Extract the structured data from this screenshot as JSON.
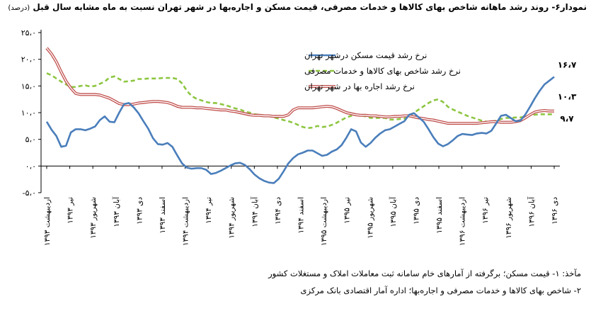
{
  "figure": {
    "title": "نمودار۶- روند رشد ماهانه شاخص بهای کالاها و خدمات مصرفی، قیمت مسکن و اجاره‌بها در شهر تهران نسبت به ماه مشابه سال قبل",
    "unit": "(درصد)"
  },
  "source": {
    "line1": "مآخذ: ۱- قیمت مسکن؛ برگرفته از آمارهای خام سامانه ثبت معاملات املاک و مستغلات کشور",
    "line2": "۲- شاخص بهای کالاها و خدمات مصرفی و اجاره‌بها؛ اداره آمار اقتصادی بانک مرکزی"
  },
  "chart_data": {
    "type": "line",
    "title": "",
    "xlabel": "",
    "ylabel": "",
    "ylim": [
      -5,
      25
    ],
    "yticks": [
      -5,
      0,
      5,
      10,
      15,
      20,
      25
    ],
    "ytick_labels": [
      "-۵،۰",
      "۰،۰",
      "۵،۰",
      "۱۰،۰",
      "۱۵،۰",
      "۲۰،۰",
      "۲۵،۰"
    ],
    "x_tick_labels": [
      "اردیبهشت ۱۳۹۳",
      "تیر ۱۳۹۳",
      "شهریور ۱۳۹۳",
      "آبان ۱۳۹۳",
      "دی ۱۳۹۳",
      "اسفند ۱۳۹۳",
      "اردیبهشت ۱۳۹۴",
      "تیر ۱۳۹۴",
      "شهریور ۱۳۹۴",
      "آبان ۱۳۹۴",
      "دی ۱۳۹۴",
      "اسفند ۱۳۹۴",
      "اردیبهشت ۱۳۹۵",
      "تیر ۱۳۹۵",
      "شهریور ۱۳۹۵",
      "آبان ۱۳۹۵",
      "دی ۱۳۹۵",
      "اسفند ۱۳۹۵",
      "اردیبهشت ۱۳۹۶",
      "تیر ۱۳۹۶",
      "شهریور ۱۳۹۶",
      "آبان ۱۳۹۶",
      "دی ۱۳۹۶"
    ],
    "grid": false,
    "legend": "top-center",
    "series": [
      {
        "name": "نرخ رشد قیمت مسکن درشهر تهران",
        "color": "#4a7ebb",
        "dash": "solid",
        "values": [
          8.3,
          6.8,
          5.6,
          3.6,
          3.8,
          6.3,
          6.9,
          6.9,
          6.7,
          7.0,
          7.4,
          8.6,
          9.3,
          8.3,
          8.2,
          10.0,
          11.6,
          11.8,
          11.0,
          9.9,
          8.4,
          7.0,
          5.2,
          4.1,
          4.0,
          4.3,
          3.6,
          2.0,
          0.5,
          -0.3,
          -0.5,
          -0.4,
          -0.4,
          -0.7,
          -1.5,
          -1.3,
          -0.9,
          -0.4,
          0.1,
          0.5,
          0.6,
          0.2,
          -0.6,
          -1.6,
          -2.3,
          -2.8,
          -3.1,
          -3.2,
          -2.4,
          -1.0,
          0.5,
          1.5,
          2.2,
          2.5,
          2.9,
          2.9,
          2.4,
          1.9,
          2.1,
          2.7,
          3.1,
          3.9,
          5.3,
          6.9,
          6.5,
          4.4,
          3.6,
          4.3,
          5.3,
          6.1,
          6.7,
          6.9,
          7.4,
          7.9,
          8.4,
          9.6,
          9.9,
          9.1,
          8.3,
          6.9,
          5.4,
          4.2,
          3.7,
          4.1,
          4.8,
          5.6,
          6.0,
          5.9,
          5.8,
          6.1,
          6.2,
          6.1,
          6.6,
          8.0,
          9.4,
          9.6,
          9.0,
          8.4,
          8.5,
          9.6,
          11.1,
          12.7,
          14.1,
          15.3,
          16.0,
          16.7
        ]
      },
      {
        "name": "نرخ رشد شاخص بهای کالاها و خدمات مصرفی",
        "color": "#8dc641",
        "dash": "dashed",
        "values": [
          17.4,
          17.0,
          16.4,
          15.8,
          15.3,
          14.8,
          14.8,
          15.0,
          15.1,
          14.9,
          15.0,
          15.4,
          15.8,
          16.6,
          16.8,
          16.3,
          15.8,
          15.9,
          16.0,
          16.3,
          16.3,
          16.4,
          16.4,
          16.4,
          16.5,
          16.5,
          16.5,
          16.3,
          15.5,
          14.1,
          13.1,
          12.6,
          12.3,
          12.0,
          11.8,
          11.8,
          11.6,
          11.4,
          11.1,
          10.8,
          10.6,
          10.2,
          10.0,
          9.7,
          9.6,
          9.5,
          9.4,
          9.1,
          8.9,
          8.6,
          8.4,
          8.1,
          7.7,
          7.3,
          7.1,
          7.2,
          7.5,
          7.3,
          7.4,
          7.7,
          8.1,
          8.6,
          9.1,
          9.4,
          9.6,
          9.5,
          9.3,
          9.0,
          9.0,
          9.0,
          9.0,
          8.7,
          8.7,
          8.8,
          8.9,
          9.4,
          10.0,
          10.6,
          11.2,
          11.8,
          12.3,
          12.5,
          12.0,
          11.1,
          10.6,
          10.2,
          9.8,
          9.4,
          9.1,
          8.8,
          8.5,
          8.3,
          8.3,
          8.5,
          8.8,
          9.0,
          9.0,
          9.1,
          9.1,
          9.3,
          9.5,
          9.6,
          9.7,
          9.7,
          9.7,
          9.7
        ]
      },
      {
        "name": "نرخ رشد اجاره بها در شهر تهران",
        "color": "#c0504d",
        "dash": "double",
        "values": [
          22.1,
          21.0,
          19.5,
          17.6,
          15.9,
          14.6,
          13.6,
          13.4,
          13.4,
          13.4,
          13.4,
          13.3,
          13.0,
          12.7,
          12.2,
          11.7,
          11.5,
          11.5,
          11.6,
          11.8,
          11.9,
          12.0,
          12.1,
          12.1,
          12.0,
          11.9,
          11.6,
          11.2,
          11.0,
          11.0,
          11.0,
          10.9,
          10.9,
          10.8,
          10.7,
          10.6,
          10.5,
          10.5,
          10.3,
          10.2,
          10.0,
          9.8,
          9.6,
          9.5,
          9.5,
          9.4,
          9.4,
          9.3,
          9.3,
          9.3,
          9.6,
          10.5,
          10.9,
          10.9,
          10.9,
          10.9,
          11.0,
          11.1,
          11.2,
          11.1,
          10.8,
          10.4,
          10.0,
          9.8,
          9.6,
          9.5,
          9.5,
          9.4,
          9.4,
          9.3,
          9.2,
          9.2,
          9.3,
          9.3,
          9.4,
          9.4,
          9.2,
          9.0,
          8.9,
          8.7,
          8.6,
          8.4,
          8.2,
          8.0,
          8.0,
          8.0,
          8.0,
          8.0,
          8.0,
          8.0,
          8.1,
          8.2,
          8.3,
          8.3,
          8.2,
          8.2,
          8.2,
          8.3,
          8.5,
          9.0,
          9.6,
          10.1,
          10.3,
          10.4,
          10.3,
          10.3
        ]
      }
    ],
    "end_labels": [
      "۱۶،۷",
      "۱۰،۳",
      "۹،۷"
    ]
  }
}
